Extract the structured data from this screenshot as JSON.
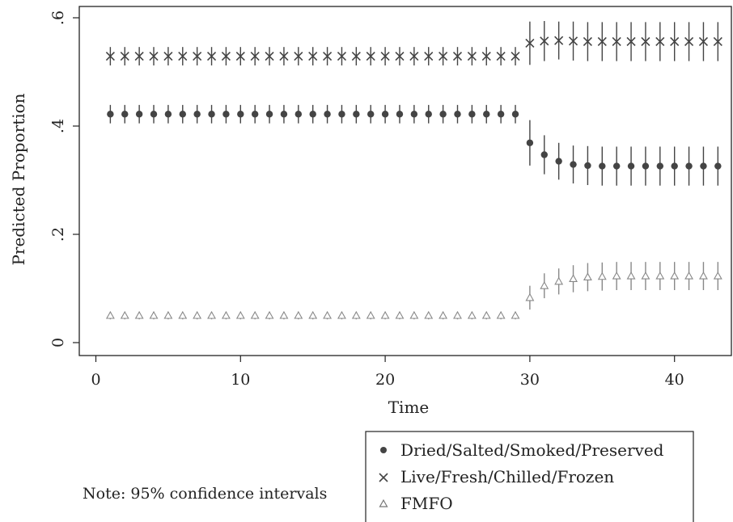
{
  "chart_data": {
    "type": "scatter",
    "title": "",
    "xlabel": "Time",
    "ylabel": "Predicted Proportion",
    "xlim": [
      0,
      43.5
    ],
    "ylim": [
      0,
      0.6
    ],
    "x_ticks": [
      0,
      10,
      20,
      30,
      40
    ],
    "x_tick_labels": [
      "0",
      "10",
      "20",
      "30",
      "40"
    ],
    "y_ticks": [
      0,
      0.2,
      0.4,
      0.6
    ],
    "y_tick_labels": [
      "0",
      ".2",
      ".4",
      ".6"
    ],
    "grid": false,
    "legend_position": "bottom-right",
    "note": "Note: 95% confidence intervals",
    "x": [
      1,
      2,
      3,
      4,
      5,
      6,
      7,
      8,
      9,
      10,
      11,
      12,
      13,
      14,
      15,
      16,
      17,
      18,
      19,
      20,
      21,
      22,
      23,
      24,
      25,
      26,
      27,
      28,
      29,
      30,
      31,
      32,
      33,
      34,
      35,
      36,
      37,
      38,
      39,
      40,
      41,
      42,
      43
    ],
    "series": [
      {
        "name": "Dried/Salted/Smoked/Preserved",
        "marker": "circle",
        "color": "#444444",
        "values": [
          0.422,
          0.422,
          0.422,
          0.422,
          0.422,
          0.422,
          0.422,
          0.422,
          0.422,
          0.422,
          0.422,
          0.422,
          0.422,
          0.422,
          0.422,
          0.422,
          0.422,
          0.422,
          0.422,
          0.422,
          0.422,
          0.422,
          0.422,
          0.422,
          0.422,
          0.422,
          0.422,
          0.422,
          0.422,
          0.369,
          0.347,
          0.335,
          0.329,
          0.327,
          0.326,
          0.326,
          0.326,
          0.326,
          0.326,
          0.326,
          0.326,
          0.326,
          0.326
        ],
        "ci_half": [
          0.017,
          0.017,
          0.017,
          0.017,
          0.017,
          0.017,
          0.017,
          0.017,
          0.017,
          0.017,
          0.017,
          0.017,
          0.017,
          0.017,
          0.017,
          0.017,
          0.017,
          0.017,
          0.017,
          0.017,
          0.017,
          0.017,
          0.017,
          0.017,
          0.017,
          0.017,
          0.017,
          0.017,
          0.017,
          0.042,
          0.036,
          0.034,
          0.035,
          0.036,
          0.036,
          0.036,
          0.036,
          0.036,
          0.036,
          0.036,
          0.036,
          0.036,
          0.036
        ]
      },
      {
        "name": "Live/Fresh/Chilled/Frozen",
        "marker": "x",
        "color": "#444444",
        "values": [
          0.529,
          0.529,
          0.529,
          0.529,
          0.529,
          0.529,
          0.529,
          0.529,
          0.529,
          0.529,
          0.529,
          0.529,
          0.529,
          0.529,
          0.529,
          0.529,
          0.529,
          0.529,
          0.529,
          0.529,
          0.529,
          0.529,
          0.529,
          0.529,
          0.529,
          0.529,
          0.529,
          0.529,
          0.529,
          0.553,
          0.557,
          0.558,
          0.557,
          0.556,
          0.556,
          0.556,
          0.556,
          0.556,
          0.556,
          0.556,
          0.556,
          0.556,
          0.556
        ],
        "ci_half": [
          0.017,
          0.017,
          0.017,
          0.017,
          0.017,
          0.017,
          0.017,
          0.017,
          0.017,
          0.017,
          0.017,
          0.017,
          0.017,
          0.017,
          0.017,
          0.017,
          0.017,
          0.017,
          0.017,
          0.017,
          0.017,
          0.017,
          0.017,
          0.017,
          0.017,
          0.017,
          0.017,
          0.017,
          0.017,
          0.04,
          0.037,
          0.035,
          0.036,
          0.036,
          0.036,
          0.036,
          0.036,
          0.036,
          0.036,
          0.036,
          0.036,
          0.036,
          0.036
        ]
      },
      {
        "name": "FMFO",
        "marker": "triangle",
        "color": "#888888",
        "values": [
          0.05,
          0.05,
          0.05,
          0.05,
          0.05,
          0.05,
          0.05,
          0.05,
          0.05,
          0.05,
          0.05,
          0.05,
          0.05,
          0.05,
          0.05,
          0.05,
          0.05,
          0.05,
          0.05,
          0.05,
          0.05,
          0.05,
          0.05,
          0.05,
          0.05,
          0.05,
          0.05,
          0.05,
          0.05,
          0.083,
          0.105,
          0.113,
          0.118,
          0.121,
          0.122,
          0.123,
          0.123,
          0.123,
          0.123,
          0.123,
          0.123,
          0.123,
          0.123
        ],
        "ci_half": [
          0.007,
          0.007,
          0.007,
          0.007,
          0.007,
          0.007,
          0.007,
          0.007,
          0.007,
          0.007,
          0.007,
          0.007,
          0.007,
          0.007,
          0.007,
          0.007,
          0.007,
          0.007,
          0.007,
          0.007,
          0.007,
          0.007,
          0.007,
          0.007,
          0.007,
          0.007,
          0.007,
          0.007,
          0.007,
          0.022,
          0.023,
          0.024,
          0.025,
          0.026,
          0.026,
          0.026,
          0.026,
          0.026,
          0.026,
          0.026,
          0.026,
          0.026,
          0.026
        ]
      }
    ]
  }
}
